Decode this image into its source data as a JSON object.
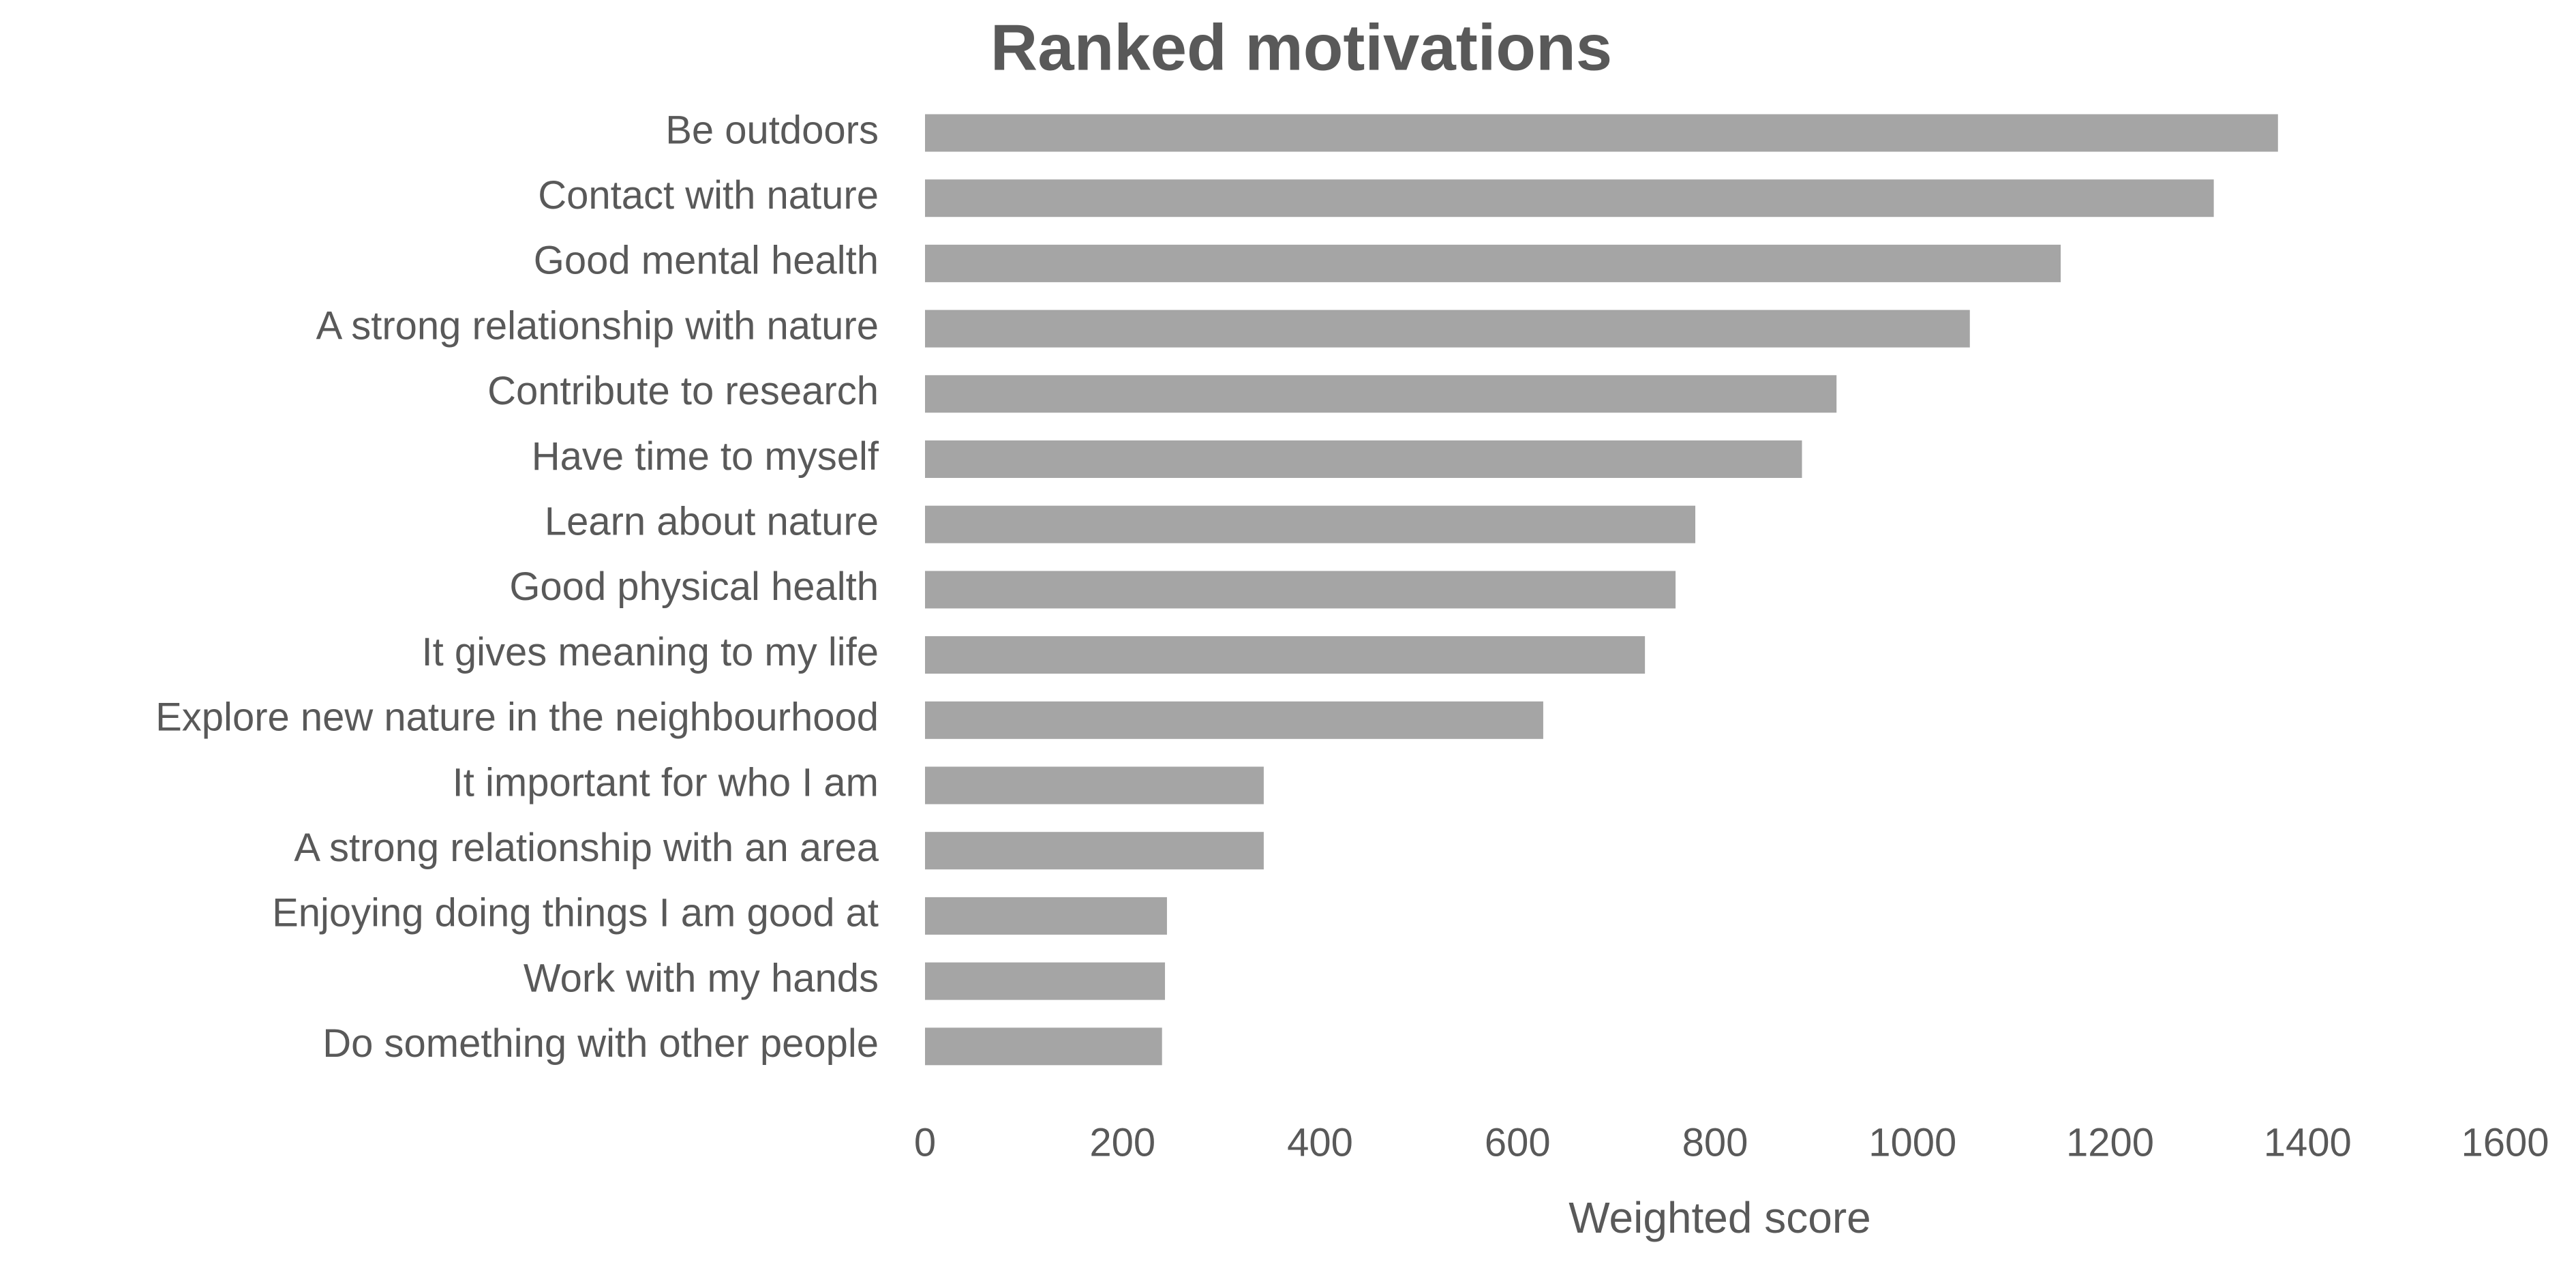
{
  "chart_data": {
    "type": "bar",
    "orientation": "horizontal",
    "title": "Ranked motivations",
    "x_label": "Weighted score",
    "categories": [
      "Be outdoors",
      "Contact with nature",
      "Good mental health",
      "A strong relationship with nature",
      "Contribute to research",
      "Have time to myself",
      "Learn about nature",
      "Good physical health",
      "It gives meaning to my life",
      "Explore new nature in the neighbourhood",
      "It important for who I am",
      "A strong relationship with an area",
      "Enjoying doing things I am good at",
      "Work with my hands",
      "Do something with other people"
    ],
    "values": [
      1370,
      1305,
      1150,
      1058,
      923,
      888,
      780,
      760,
      729,
      626,
      343,
      343,
      245,
      243,
      240
    ],
    "color": "#a5a5a5",
    "xlim": [
      0,
      1600
    ],
    "xticks": [
      0,
      200,
      400,
      600,
      800,
      1000,
      1200,
      1400,
      1600
    ],
    "grid": false
  }
}
